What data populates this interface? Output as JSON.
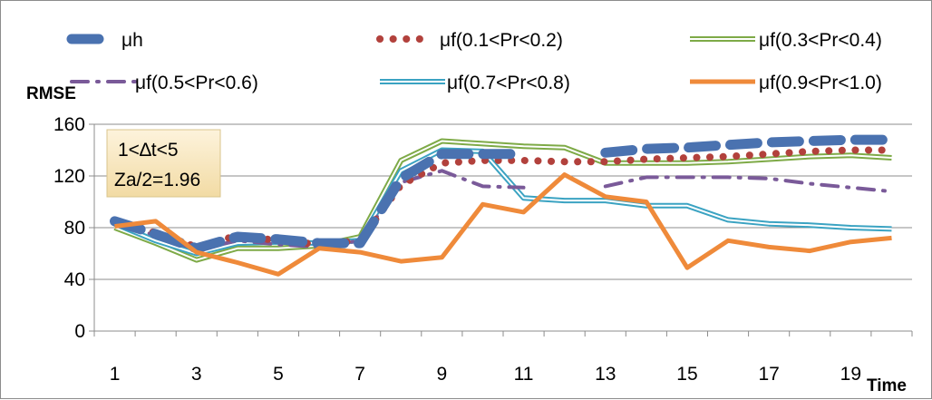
{
  "chart_data": {
    "type": "line",
    "ylabel": "RMSE",
    "xlabel": "Time",
    "ylim": [
      0,
      160
    ],
    "y_ticks": [
      "0",
      "40",
      "80",
      "120",
      "160"
    ],
    "x": [
      1,
      2,
      3,
      4,
      5,
      6,
      7,
      8,
      9,
      10,
      11,
      12,
      13,
      14,
      15,
      16,
      17,
      18,
      19,
      20
    ],
    "x_ticks": [
      "1",
      "3",
      "5",
      "7",
      "9",
      "11",
      "13",
      "15",
      "17",
      "19"
    ],
    "grid": "horizontal",
    "legend_position": "top",
    "annotation": [
      "1<∆t<5",
      "Za/2=1.96"
    ],
    "series": [
      {
        "name": "μh",
        "color": "#4a72b0",
        "style": "heavy-dash",
        "values": [
          85,
          75,
          64,
          73,
          71,
          68,
          68,
          118,
          137,
          137,
          137,
          null,
          138,
          141,
          142,
          144,
          146,
          147,
          148,
          148
        ]
      },
      {
        "name": "μf(0.1<Pr<0.2)",
        "color": "#b2413c",
        "style": "dots",
        "values": [
          85,
          76,
          65,
          74,
          70,
          67,
          70,
          113,
          130,
          132,
          132,
          131,
          131,
          133,
          134,
          135,
          137,
          139,
          140,
          140
        ]
      },
      {
        "name": "μf(0.3<Pr<0.4)",
        "color": "#7eaa47",
        "style": "double",
        "values": [
          80,
          68,
          55,
          64,
          64,
          66,
          73,
          132,
          147,
          145,
          143,
          142,
          130,
          130,
          130,
          131,
          133,
          135,
          136,
          134
        ]
      },
      {
        "name": "μf(0.5<Pr<0.6)",
        "color": "#7a5a99",
        "style": "dash-dot",
        "values": [
          84,
          74,
          63,
          70,
          67,
          65,
          70,
          115,
          124,
          112,
          111,
          null,
          112,
          119,
          119,
          119,
          118,
          114,
          111,
          108
        ]
      },
      {
        "name": "μf(0.7<Pr<0.8)",
        "color": "#3ba3c2",
        "style": "double",
        "values": [
          83,
          70,
          60,
          68,
          69,
          68,
          70,
          124,
          140,
          139,
          103,
          101,
          101,
          97,
          97,
          86,
          83,
          82,
          80,
          79
        ]
      },
      {
        "name": "μf(0.9<Pr<1.0)",
        "color": "#ef8a3a",
        "style": "solid",
        "values": [
          81,
          85,
          61,
          53,
          44,
          64,
          61,
          54,
          57,
          98,
          92,
          121,
          104,
          100,
          49,
          70,
          65,
          62,
          69,
          72
        ]
      }
    ]
  }
}
